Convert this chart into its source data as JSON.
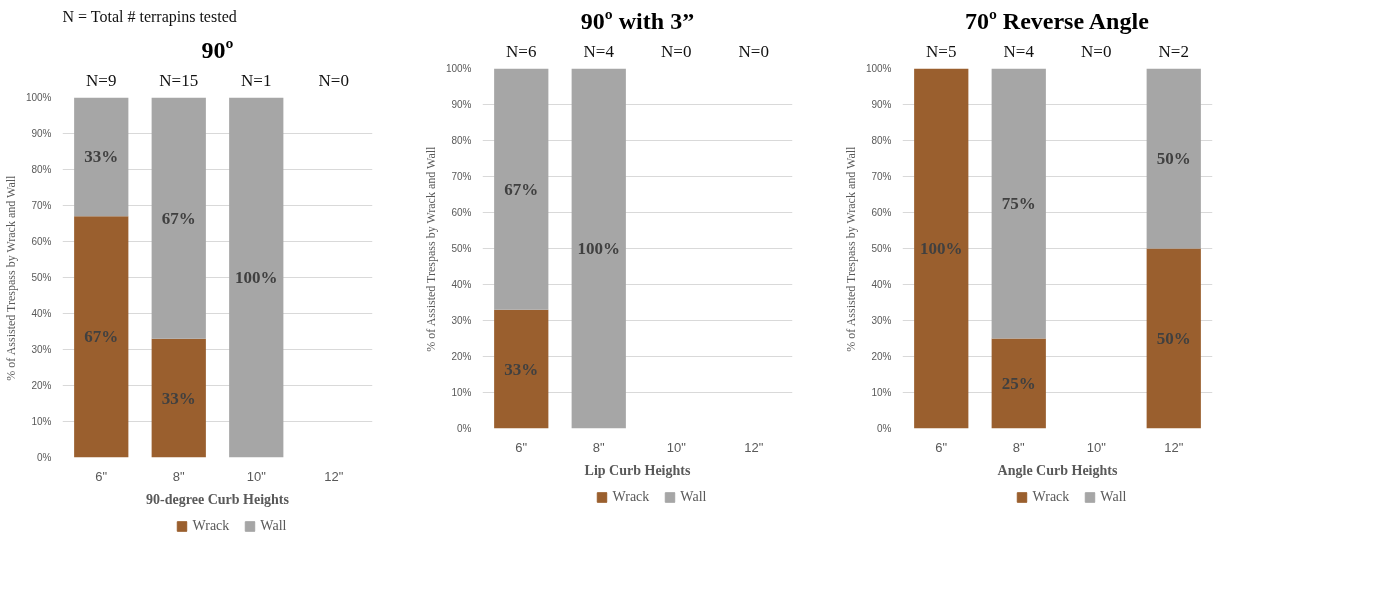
{
  "chart_data": [
    {
      "type": "bar",
      "title": "90º",
      "xlabel": "90-degree Curb Heights",
      "ylabel": "% of Assisted Trespass by Wrack and Wall",
      "categories": [
        "6\"",
        "8\"",
        "10\"",
        "12\""
      ],
      "stacked": true,
      "series": [
        {
          "name": "Wrack",
          "color": "#9a5f2e",
          "values": [
            67,
            33,
            0,
            null
          ],
          "value_labels": [
            "67%",
            "33%",
            null,
            null
          ]
        },
        {
          "name": "Wall",
          "color": "#a6a6a6",
          "values": [
            33,
            67,
            100,
            null
          ],
          "value_labels": [
            "33%",
            "67%",
            "100%",
            null
          ]
        }
      ],
      "ylim": [
        0,
        100
      ],
      "yticks": [
        {
          "value": 0,
          "label": "0%"
        },
        {
          "value": 10,
          "label": "10%"
        },
        {
          "value": 20,
          "label": "20%"
        },
        {
          "value": 30,
          "label": "30%"
        },
        {
          "value": 40,
          "label": "40%"
        },
        {
          "value": 50,
          "label": "50%"
        },
        {
          "value": 60,
          "label": "60%"
        },
        {
          "value": 70,
          "label": "70%"
        },
        {
          "value": 80,
          "label": "80%"
        },
        {
          "value": 90,
          "label": "90%"
        },
        {
          "value": 100,
          "label": "100%"
        }
      ],
      "grid": "y",
      "legend": "bottom",
      "annotations": [
        "N = Total # terrapins tested",
        "N=9",
        "N=15",
        "N=1",
        "N=0"
      ]
    },
    {
      "type": "bar",
      "title": "90º with 3”",
      "xlabel": "Lip Curb Heights",
      "ylabel": "% of Assisted Trespass by Wrack and Wall",
      "categories": [
        "6\"",
        "8\"",
        "10\"",
        "12\""
      ],
      "stacked": true,
      "series": [
        {
          "name": "Wrack",
          "color": "#9a5f2e",
          "values": [
            33,
            0,
            null,
            null
          ],
          "value_labels": [
            "33%",
            null,
            null,
            null
          ]
        },
        {
          "name": "Wall",
          "color": "#a6a6a6",
          "values": [
            67,
            100,
            null,
            null
          ],
          "value_labels": [
            "67%",
            "100%",
            null,
            null
          ]
        }
      ],
      "ylim": [
        0,
        100
      ],
      "yticks": [
        {
          "value": 0,
          "label": "0%"
        },
        {
          "value": 10,
          "label": "10%"
        },
        {
          "value": 20,
          "label": "20%"
        },
        {
          "value": 30,
          "label": "30%"
        },
        {
          "value": 40,
          "label": "40%"
        },
        {
          "value": 50,
          "label": "50%"
        },
        {
          "value": 60,
          "label": "60%"
        },
        {
          "value": 70,
          "label": "70%"
        },
        {
          "value": 80,
          "label": "80%"
        },
        {
          "value": 90,
          "label": "90%"
        },
        {
          "value": 100,
          "label": "100%"
        }
      ],
      "grid": "y",
      "legend": "bottom",
      "annotations": [
        "N=6",
        "N=4",
        "N=0",
        "N=0"
      ]
    },
    {
      "type": "bar",
      "title": "70º Reverse Angle",
      "xlabel": "Angle Curb Heights",
      "ylabel": "% of Assisted Trespass by Wrack and Wall",
      "categories": [
        "6\"",
        "8\"",
        "10\"",
        "12\""
      ],
      "stacked": true,
      "series": [
        {
          "name": "Wrack",
          "color": "#9a5f2e",
          "values": [
            100,
            25,
            null,
            50
          ],
          "value_labels": [
            "100%",
            "25%",
            null,
            "50%"
          ]
        },
        {
          "name": "Wall",
          "color": "#a6a6a6",
          "values": [
            0,
            75,
            null,
            50
          ],
          "value_labels": [
            null,
            "75%",
            null,
            "50%"
          ]
        }
      ],
      "ylim": [
        0,
        100
      ],
      "yticks": [
        {
          "value": 0,
          "label": "0%"
        },
        {
          "value": 10,
          "label": "10%"
        },
        {
          "value": 20,
          "label": "20%"
        },
        {
          "value": 30,
          "label": "30%"
        },
        {
          "value": 40,
          "label": "40%"
        },
        {
          "value": 50,
          "label": "50%"
        },
        {
          "value": 60,
          "label": "60%"
        },
        {
          "value": 70,
          "label": "70%"
        },
        {
          "value": 80,
          "label": "80%"
        },
        {
          "value": 90,
          "label": "90%"
        },
        {
          "value": 100,
          "label": "100%"
        }
      ],
      "grid": "y",
      "legend": "bottom",
      "annotations": [
        "N=5",
        "N=4",
        "N=0",
        "N=2"
      ]
    }
  ]
}
